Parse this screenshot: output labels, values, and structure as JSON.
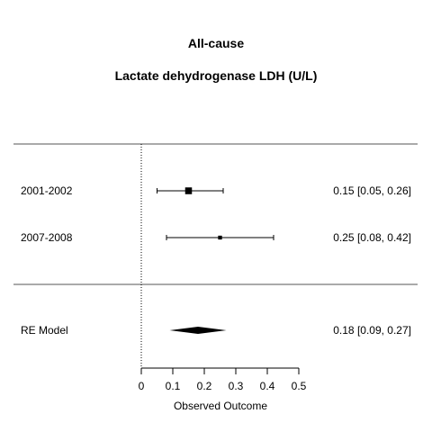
{
  "title": "All-cause",
  "subtitle": "Lactate dehydrogenase LDH (U/L)",
  "chart_data": {
    "type": "forest",
    "xlabel": "Observed Outcome",
    "xlim": [
      0,
      0.5
    ],
    "xticks": [
      "0",
      "0.1",
      "0.2",
      "0.3",
      "0.4",
      "0.5"
    ],
    "reference_line": 0,
    "studies": [
      {
        "label": "2001-2002",
        "estimate": 0.15,
        "ci_lower": 0.05,
        "ci_upper": 0.26,
        "weight": 0.85,
        "text": "0.15 [0.05, 0.26]"
      },
      {
        "label": "2007-2008",
        "estimate": 0.25,
        "ci_lower": 0.08,
        "ci_upper": 0.42,
        "weight": 0.15,
        "text": "0.25 [0.08, 0.42]"
      }
    ],
    "summary": {
      "label": "RE Model",
      "estimate": 0.18,
      "ci_lower": 0.09,
      "ci_upper": 0.27,
      "text": "0.18 [0.09, 0.27]"
    }
  }
}
